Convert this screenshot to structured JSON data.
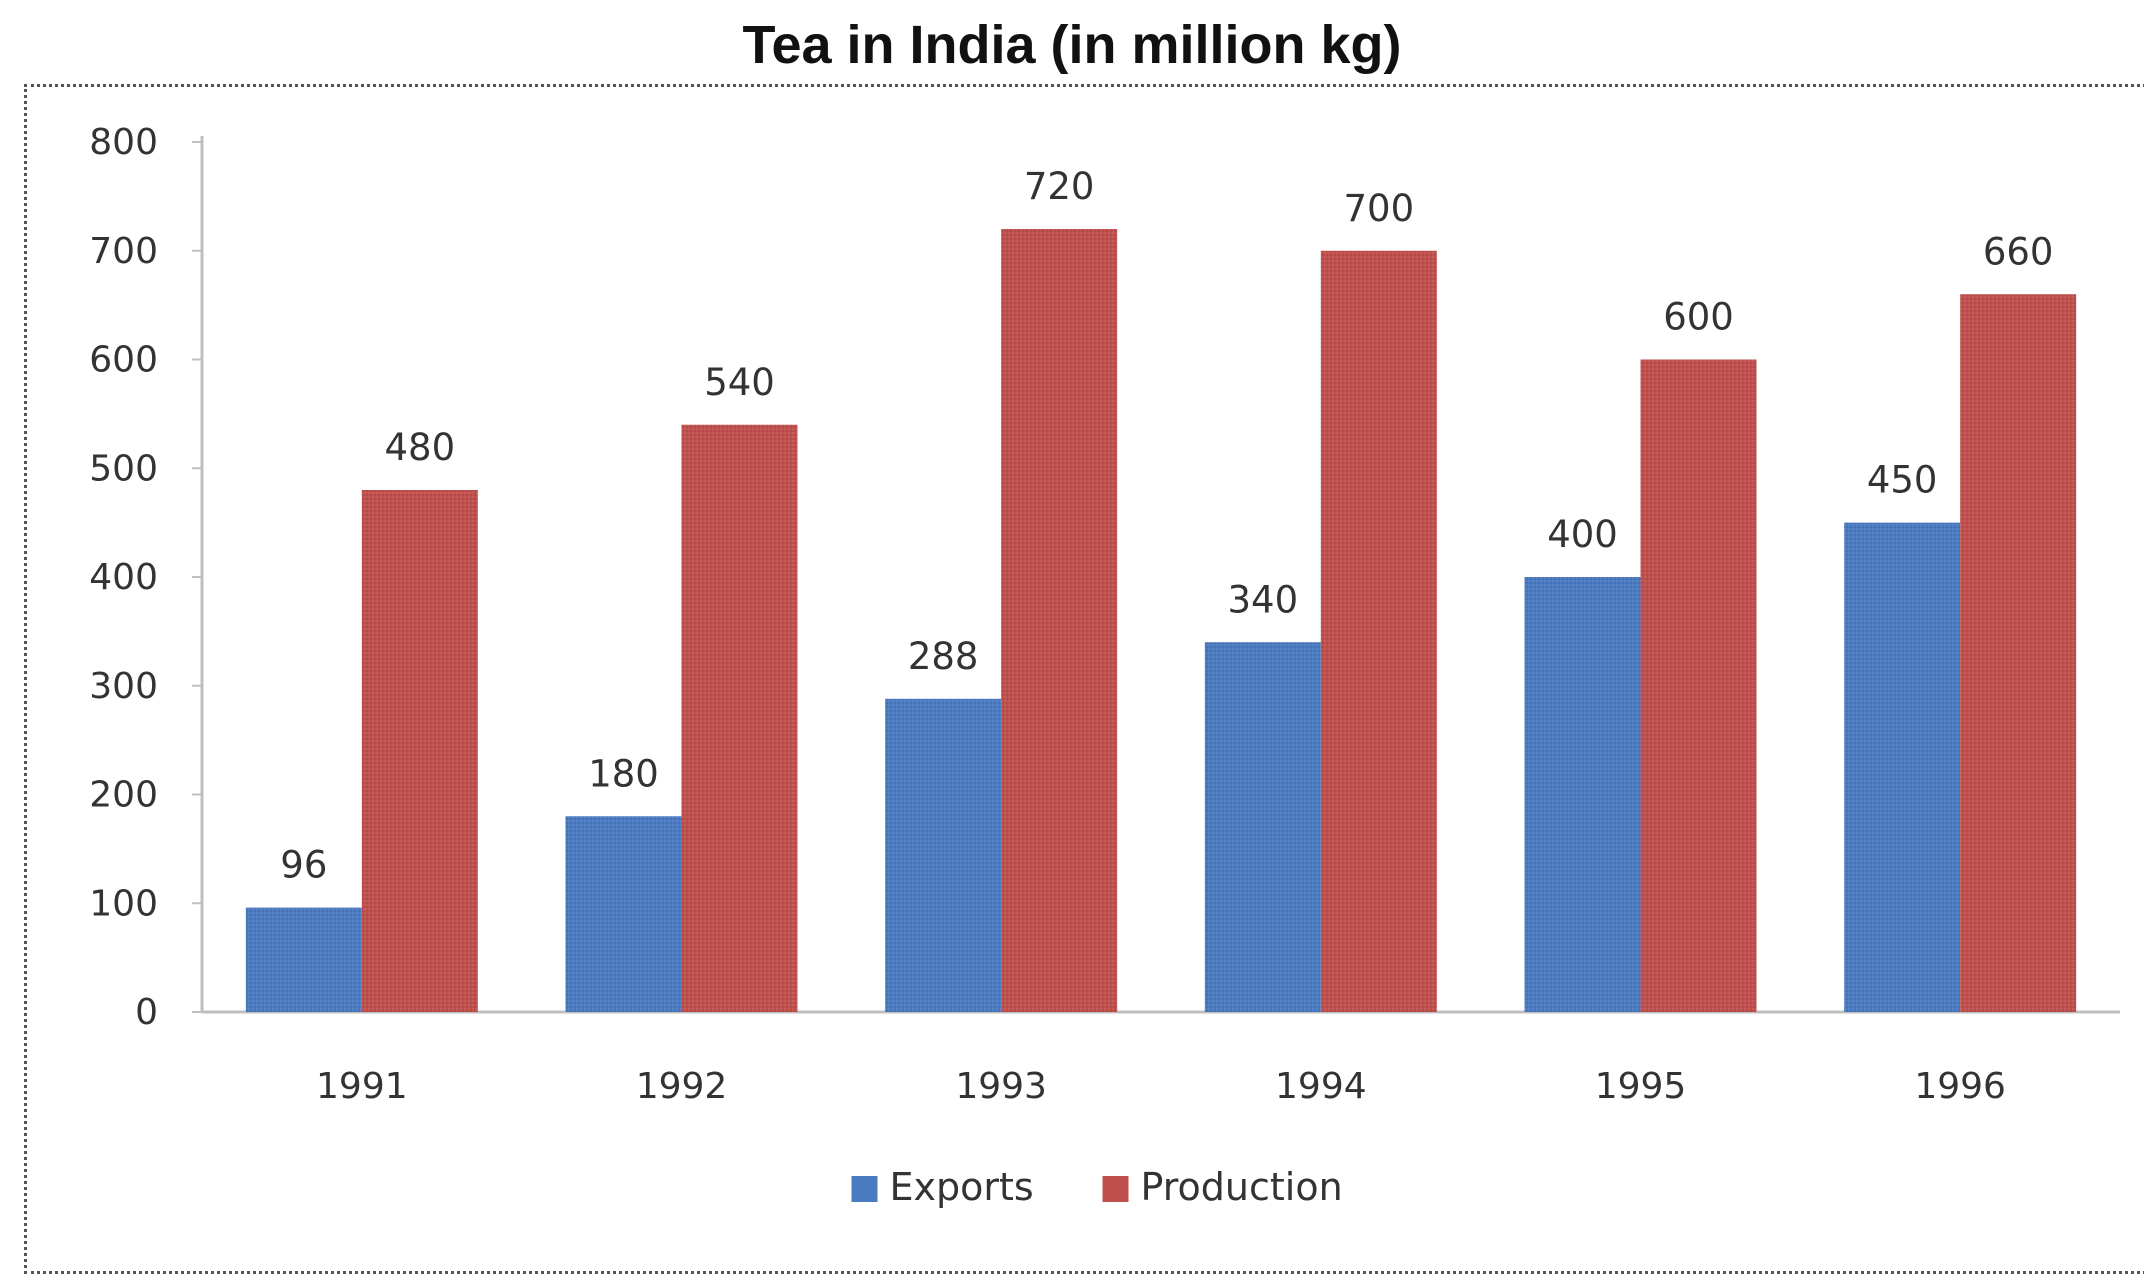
{
  "chart_data": {
    "type": "bar",
    "title": "Tea in India (in million kg)",
    "categories": [
      "1991",
      "1992",
      "1993",
      "1994",
      "1995",
      "1996"
    ],
    "series": [
      {
        "name": "Exports",
        "color": "#4a7ac0",
        "values": [
          96,
          180,
          288,
          340,
          400,
          450
        ]
      },
      {
        "name": "Production",
        "color": "#c0504d",
        "values": [
          480,
          540,
          720,
          700,
          600,
          660
        ]
      }
    ],
    "ylim": [
      0,
      800
    ],
    "yticks": [
      0,
      100,
      200,
      300,
      400,
      500,
      600,
      700,
      800
    ],
    "xlabel": "",
    "ylabel": "",
    "legend_position": "bottom",
    "data_labels": true,
    "grid": false
  }
}
